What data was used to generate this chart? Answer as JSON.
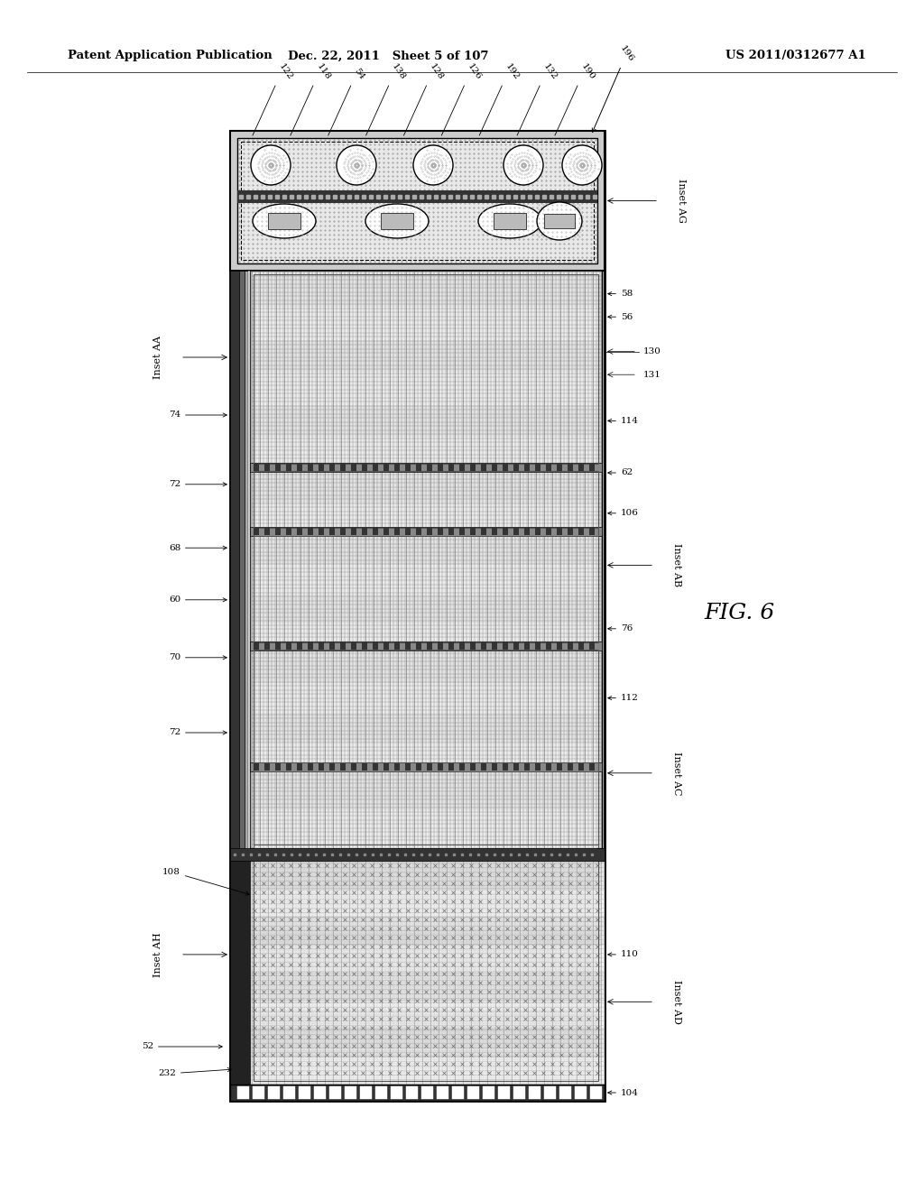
{
  "title_left": "Patent Application Publication",
  "title_mid": "Dec. 22, 2011   Sheet 5 of 107",
  "title_right": "US 2011/0312677 A1",
  "fig_label": "FIG. 6",
  "bg_color": "#ffffff"
}
